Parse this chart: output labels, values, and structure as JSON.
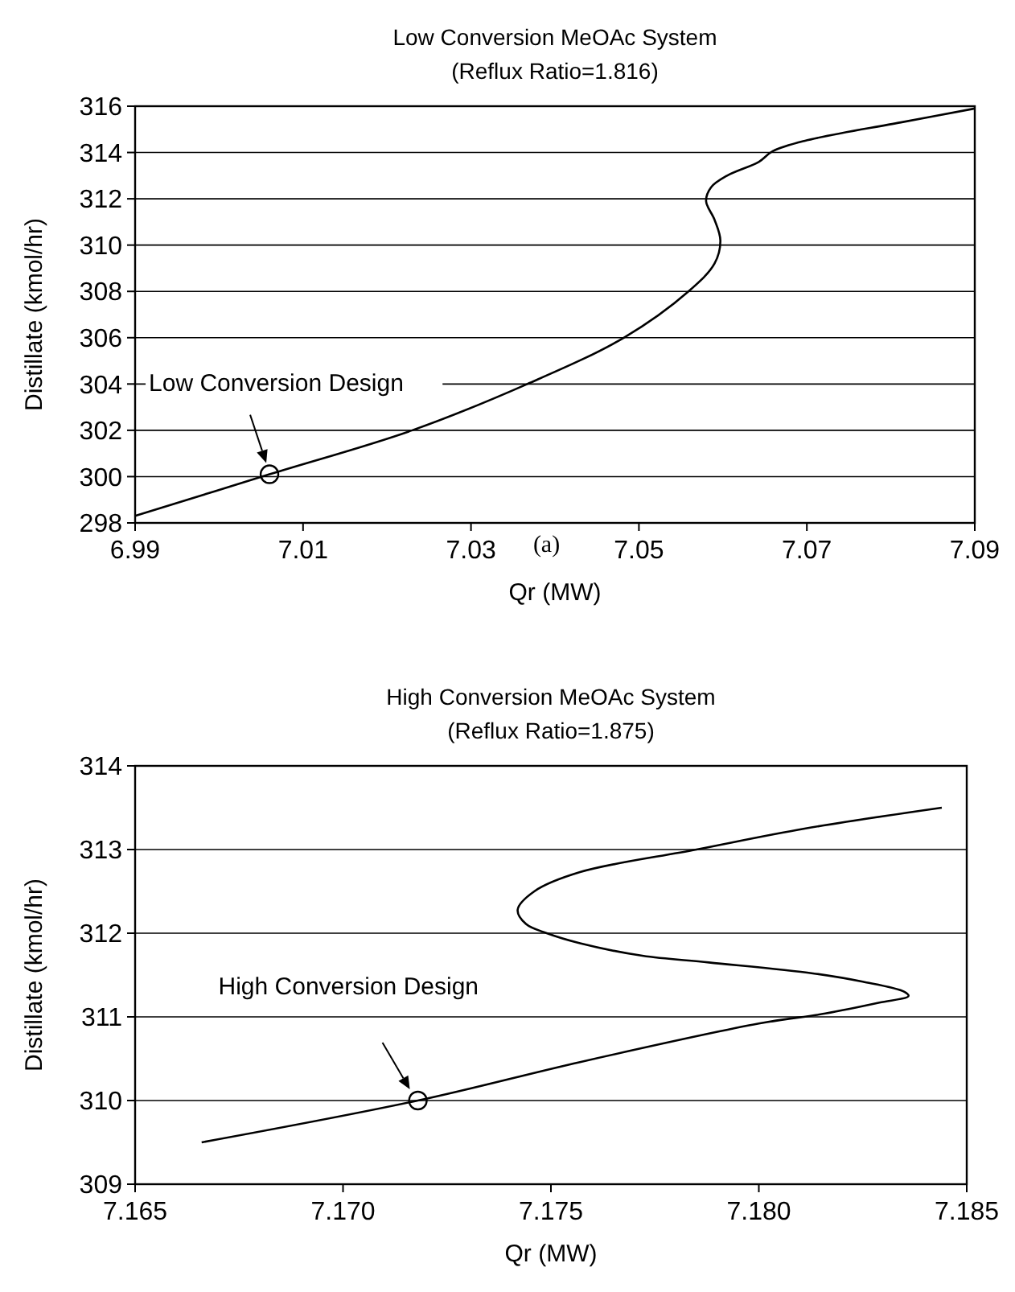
{
  "chart_data": [
    {
      "type": "line",
      "title": "Low Conversion MeOAc System",
      "subtitle": "(Reflux Ratio=1.816)",
      "xlabel": "Qr (MW)",
      "ylabel": "Distillate (kmol/hr)",
      "xlim": [
        6.99,
        7.09
      ],
      "xticks": [
        6.99,
        7.01,
        7.03,
        7.05,
        7.07,
        7.09
      ],
      "ylim": [
        298,
        316
      ],
      "yticks": [
        298,
        300,
        302,
        304,
        306,
        308,
        310,
        312,
        314,
        316
      ],
      "grid": "y",
      "series": [
        {
          "color": "#000000",
          "marker": "none",
          "x": [
            6.99,
            7.006,
            7.023,
            7.0367,
            7.0482,
            7.0559,
            7.059,
            7.0597,
            7.059,
            7.058,
            7.0586,
            7.0605,
            7.0643,
            7.0659,
            7.0697,
            7.0812,
            7.09
          ],
          "values": [
            298.3,
            300.1,
            302.0,
            304.0,
            306.0,
            308.0,
            309.2,
            310.2,
            311.1,
            311.9,
            312.5,
            313.0,
            313.6,
            314.05,
            314.5,
            315.3,
            315.9
          ]
        },
        {
          "type": "scatter",
          "color": "#000000",
          "marker": "circle",
          "x": [
            7.006
          ],
          "values": [
            300.1
          ]
        }
      ],
      "annotations": [
        "Low Conversion Design",
        "(a)"
      ]
    },
    {
      "type": "line",
      "title": "High Conversion MeOAc System",
      "subtitle": "(Reflux Ratio=1.875)",
      "xlabel": "Qr (MW)",
      "ylabel": "Distillate (kmol/hr)",
      "xlim": [
        7.165,
        7.185
      ],
      "xticks": [
        {
          "value": 7.165,
          "label": "7.165"
        },
        {
          "value": 7.17,
          "label": "7.170"
        },
        {
          "value": 7.175,
          "label": "7.175"
        },
        {
          "value": 7.18,
          "label": "7.180"
        },
        {
          "value": 7.185,
          "label": "7.185"
        }
      ],
      "ylim": [
        309,
        314
      ],
      "yticks": [
        309,
        310,
        311,
        312,
        313,
        314
      ],
      "grid": "y",
      "series": [
        {
          "color": "#000000",
          "marker": "none",
          "x": [
            7.1666,
            7.1718,
            7.1757,
            7.18,
            7.1816,
            7.1829,
            7.1836,
            7.1835,
            7.1825,
            7.1813,
            7.1788,
            7.1772,
            7.1757,
            7.1749,
            7.1744,
            7.1742,
            7.1746,
            7.1757,
            7.1785,
            7.1811,
            7.1844
          ],
          "values": [
            309.5,
            310.0,
            310.46,
            310.92,
            311.04,
            311.17,
            311.25,
            311.3,
            311.42,
            311.52,
            311.65,
            311.73,
            311.88,
            312.0,
            312.11,
            312.28,
            312.5,
            312.73,
            313.0,
            313.25,
            313.5
          ]
        },
        {
          "type": "scatter",
          "color": "#000000",
          "marker": "circle",
          "x": [
            7.1718
          ],
          "values": [
            310.0
          ]
        }
      ],
      "annotations": [
        "High Conversion Design"
      ]
    }
  ]
}
